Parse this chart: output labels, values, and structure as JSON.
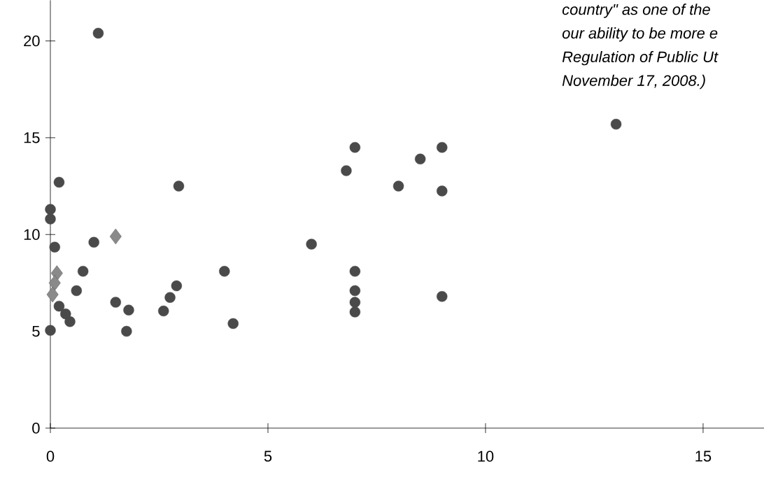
{
  "chart_data": {
    "type": "scatter",
    "annotations": [
      "country\" as one of the",
      "our ability to be more e",
      "Regulation of Public Ut",
      "November 17, 2008.)"
    ],
    "series": [
      {
        "color": "#4a4a4a",
        "marker": "circle",
        "x": [
          1.1,
          0.2,
          0,
          0,
          0.1,
          1.0,
          0.75,
          0.6,
          0,
          0.45,
          0.35,
          0.2,
          1.5,
          1.8,
          1.75,
          2.95,
          2.9,
          2.75,
          2.6,
          4.0,
          4.2,
          6.0,
          7.0,
          6.8,
          7.0,
          7.0,
          7.0,
          7.0,
          8.0,
          8.5,
          9.0,
          9.0,
          9.0,
          13.0
        ],
        "values": [
          20.4,
          12.7,
          11.3,
          10.8,
          9.35,
          9.6,
          8.1,
          7.1,
          5.05,
          5.5,
          5.9,
          6.3,
          6.5,
          6.1,
          5.0,
          12.5,
          7.35,
          6.75,
          6.05,
          8.1,
          5.4,
          9.5,
          14.5,
          13.3,
          8.1,
          7.1,
          6.5,
          6.0,
          12.5,
          13.9,
          14.5,
          12.25,
          6.8,
          15.7
        ]
      },
      {
        "color": "#8a8a8a",
        "marker": "diamond",
        "x": [
          1.5,
          0.15,
          0.1,
          0.05
        ],
        "values": [
          9.9,
          8.0,
          7.5,
          6.9
        ]
      }
    ],
    "xlim": [
      0,
      16.4
    ],
    "ylim": [
      0,
      22.1
    ],
    "xticks": [
      0,
      5,
      10,
      15
    ],
    "yticks": [
      0,
      5,
      10,
      15,
      20
    ],
    "grid": false
  }
}
